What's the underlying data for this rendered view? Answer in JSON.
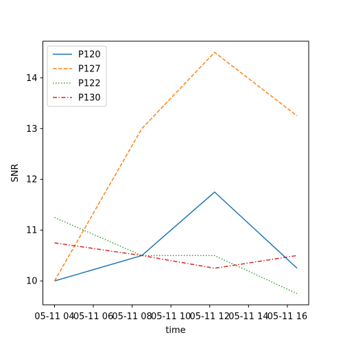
{
  "chart_data": {
    "type": "line",
    "xlabel": "time",
    "ylabel": "SNR",
    "x": [
      "05-11 04:00",
      "05-11 08:30",
      "05-11 12:15",
      "05-11 16:30"
    ],
    "x_ticks": [
      {
        "hour": 4,
        "label": "05-11 04"
      },
      {
        "hour": 6,
        "label": "05-11 06"
      },
      {
        "hour": 8,
        "label": "05-11 08"
      },
      {
        "hour": 10,
        "label": "05-11 10"
      },
      {
        "hour": 12,
        "label": "05-11 12"
      },
      {
        "hour": 14,
        "label": "05-11 14"
      },
      {
        "hour": 16,
        "label": "05-11 16"
      }
    ],
    "y_ticks": [
      10,
      11,
      12,
      13,
      14
    ],
    "series": [
      {
        "name": "P120",
        "values": [
          10.0,
          10.5,
          11.75,
          10.25
        ],
        "color": "#1f77b4",
        "dash": "solid"
      },
      {
        "name": "P127",
        "values": [
          10.0,
          13.0,
          14.5,
          13.25
        ],
        "color": "#ff7f0e",
        "dash": "dashed"
      },
      {
        "name": "P122",
        "values": [
          11.25,
          10.5,
          10.5,
          9.75
        ],
        "color": "#2ca02c",
        "dash": "dotted"
      },
      {
        "name": "P130",
        "values": [
          10.75,
          10.5,
          10.25,
          10.5
        ],
        "color": "#d62728",
        "dash": "dashdot"
      }
    ],
    "legend_position": "top-left",
    "grid": false
  }
}
